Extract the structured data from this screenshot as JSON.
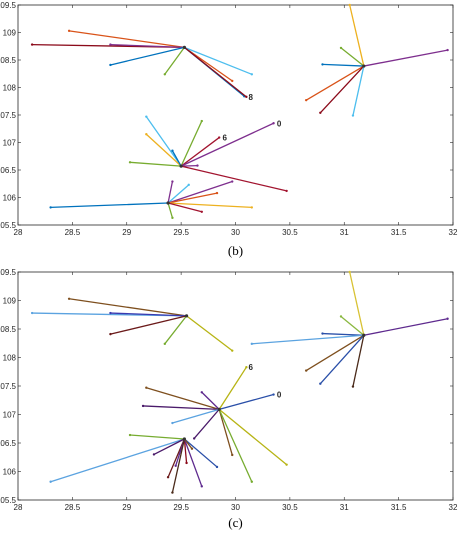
{
  "chart_data": [
    {
      "type": "network",
      "caption": "(b)",
      "xlim": [
        28,
        32
      ],
      "ylim": [
        105.5,
        109.5
      ],
      "xticks": [
        "28",
        "28.5",
        "29",
        "29.5",
        "30",
        "30.5",
        "31",
        "31.5",
        "32"
      ],
      "yticks": [
        "105.5",
        "106",
        "106.5",
        "107",
        "107.5",
        "108",
        "108.5",
        "109",
        "109.5"
      ],
      "grid": false,
      "hubs": [
        {
          "x": 29.53,
          "y": 108.73,
          "edges": [
            {
              "x": 28.47,
              "y": 109.03,
              "color": "#d95319"
            },
            {
              "x": 28.13,
              "y": 108.78,
              "color": "#8b0a1a"
            },
            {
              "x": 28.85,
              "y": 108.78,
              "color": "#7e2f8e"
            },
            {
              "x": 28.85,
              "y": 108.41,
              "color": "#0072bd"
            },
            {
              "x": 29.35,
              "y": 108.24,
              "color": "#77ac30"
            },
            {
              "x": 29.97,
              "y": 108.12,
              "color": "#d95319"
            },
            {
              "x": 30.15,
              "y": 108.24,
              "color": "#4dbeee"
            },
            {
              "x": 30.08,
              "y": 107.84,
              "color": "#0072bd"
            },
            {
              "x": 30.1,
              "y": 107.83,
              "color": "#8b0a1a"
            }
          ]
        },
        {
          "x": 31.18,
          "y": 108.39,
          "edges": [
            {
              "x": 31.05,
              "y": 109.5,
              "color": "#edb120"
            },
            {
              "x": 30.97,
              "y": 108.72,
              "color": "#77ac30"
            },
            {
              "x": 30.8,
              "y": 108.42,
              "color": "#0072bd"
            },
            {
              "x": 31.95,
              "y": 108.68,
              "color": "#7e2f8e"
            },
            {
              "x": 30.65,
              "y": 107.77,
              "color": "#d95319"
            },
            {
              "x": 30.78,
              "y": 107.54,
              "color": "#8b0a1a"
            },
            {
              "x": 31.08,
              "y": 107.49,
              "color": "#4dbeee"
            }
          ]
        },
        {
          "x": 29.5,
          "y": 106.57,
          "edges": [
            {
              "x": 29.18,
              "y": 107.47,
              "color": "#4dbeee"
            },
            {
              "x": 29.69,
              "y": 107.39,
              "color": "#77ac30"
            },
            {
              "x": 29.18,
              "y": 107.15,
              "color": "#edb120"
            },
            {
              "x": 29.85,
              "y": 107.09,
              "color": "#a2142f"
            },
            {
              "x": 30.35,
              "y": 107.35,
              "color": "#7e2f8e"
            },
            {
              "x": 29.03,
              "y": 106.64,
              "color": "#77ac30"
            },
            {
              "x": 29.42,
              "y": 106.85,
              "color": "#0072bd"
            },
            {
              "x": 29.65,
              "y": 106.58,
              "color": "#7e2f8e"
            },
            {
              "x": 30.47,
              "y": 106.12,
              "color": "#a2142f"
            }
          ]
        },
        {
          "x": 29.38,
          "y": 105.9,
          "edges": [
            {
              "x": 28.3,
              "y": 105.82,
              "color": "#0072bd"
            },
            {
              "x": 29.42,
              "y": 106.29,
              "color": "#7e2f8e"
            },
            {
              "x": 29.57,
              "y": 106.23,
              "color": "#4dbeee"
            },
            {
              "x": 29.97,
              "y": 106.29,
              "color": "#7e2f8e"
            },
            {
              "x": 29.83,
              "y": 106.08,
              "color": "#d95319"
            },
            {
              "x": 30.15,
              "y": 105.82,
              "color": "#edb120"
            },
            {
              "x": 29.69,
              "y": 105.74,
              "color": "#a2142f"
            },
            {
              "x": 29.42,
              "y": 105.63,
              "color": "#77ac30"
            }
          ]
        }
      ],
      "annotations": [
        {
          "text": "0",
          "x": 30.38,
          "y": 107.35
        },
        {
          "text": "8",
          "x": 30.12,
          "y": 107.83
        },
        {
          "text": "6",
          "x": 29.88,
          "y": 107.09
        }
      ]
    },
    {
      "type": "network",
      "caption": "(c)",
      "xlim": [
        28,
        32
      ],
      "ylim": [
        105.5,
        109.5
      ],
      "xticks": [
        "28",
        "28.5",
        "29",
        "29.5",
        "30",
        "30.5",
        "31",
        "31.5",
        "32"
      ],
      "yticks": [
        "105.5",
        "106",
        "106.5",
        "107",
        "107.5",
        "108",
        "108.5",
        "109",
        "109.5"
      ],
      "grid": false,
      "hubs": [
        {
          "x": 29.55,
          "y": 108.73,
          "edges": [
            {
              "x": 28.47,
              "y": 109.03,
              "color": "#7e4f1e"
            },
            {
              "x": 28.13,
              "y": 108.78,
              "color": "#5ba3e0"
            },
            {
              "x": 28.85,
              "y": 108.78,
              "color": "#3a3ab0"
            },
            {
              "x": 28.85,
              "y": 108.41,
              "color": "#6b1a1a"
            },
            {
              "x": 29.35,
              "y": 108.24,
              "color": "#77ac30"
            },
            {
              "x": 29.97,
              "y": 108.12,
              "color": "#b7b415"
            }
          ]
        },
        {
          "x": 31.18,
          "y": 108.39,
          "edges": [
            {
              "x": 31.05,
              "y": 109.5,
              "color": "#d8c234"
            },
            {
              "x": 30.97,
              "y": 108.72,
              "color": "#8ab840"
            },
            {
              "x": 30.8,
              "y": 108.42,
              "color": "#2a4fa8"
            },
            {
              "x": 31.95,
              "y": 108.68,
              "color": "#5e2a8e"
            },
            {
              "x": 30.15,
              "y": 108.24,
              "color": "#5ba3e0"
            },
            {
              "x": 30.65,
              "y": 107.77,
              "color": "#7e4f1e"
            },
            {
              "x": 30.78,
              "y": 107.54,
              "color": "#2a4fa8"
            },
            {
              "x": 31.08,
              "y": 107.49,
              "color": "#4a2a1a"
            }
          ]
        },
        {
          "x": 29.85,
          "y": 107.09,
          "edges": [
            {
              "x": 29.18,
              "y": 107.47,
              "color": "#7e4f1e"
            },
            {
              "x": 29.69,
              "y": 107.39,
              "color": "#5e2a8e"
            },
            {
              "x": 29.15,
              "y": 107.15,
              "color": "#4a1a6a"
            },
            {
              "x": 30.35,
              "y": 107.35,
              "color": "#2a4fa8"
            },
            {
              "x": 30.1,
              "y": 107.83,
              "color": "#b7b415"
            },
            {
              "x": 29.42,
              "y": 106.85,
              "color": "#5ba3e0"
            },
            {
              "x": 29.62,
              "y": 106.58,
              "color": "#4a1a6a"
            },
            {
              "x": 29.97,
              "y": 106.29,
              "color": "#7e4f1e"
            },
            {
              "x": 30.15,
              "y": 105.82,
              "color": "#77ac30"
            },
            {
              "x": 30.47,
              "y": 106.12,
              "color": "#b7b415"
            }
          ]
        },
        {
          "x": 29.53,
          "y": 106.57,
          "edges": [
            {
              "x": 28.3,
              "y": 105.82,
              "color": "#5ba3e0"
            },
            {
              "x": 29.03,
              "y": 106.64,
              "color": "#77ac30"
            },
            {
              "x": 29.25,
              "y": 106.3,
              "color": "#4a1a6a"
            },
            {
              "x": 29.38,
              "y": 105.9,
              "color": "#6b1a1a"
            },
            {
              "x": 29.45,
              "y": 106.1,
              "color": "#5e2a8e"
            },
            {
              "x": 29.55,
              "y": 106.15,
              "color": "#8b0a1a"
            },
            {
              "x": 29.42,
              "y": 105.63,
              "color": "#4a2a1a"
            },
            {
              "x": 29.69,
              "y": 105.74,
              "color": "#5e2a8e"
            },
            {
              "x": 29.83,
              "y": 106.08,
              "color": "#2a4fa8"
            },
            {
              "x": 29.6,
              "y": 106.4,
              "color": "#7e4f1e"
            }
          ]
        }
      ],
      "annotations": [
        {
          "text": "0",
          "x": 30.38,
          "y": 107.35
        },
        {
          "text": "6",
          "x": 30.12,
          "y": 107.83
        }
      ]
    }
  ]
}
